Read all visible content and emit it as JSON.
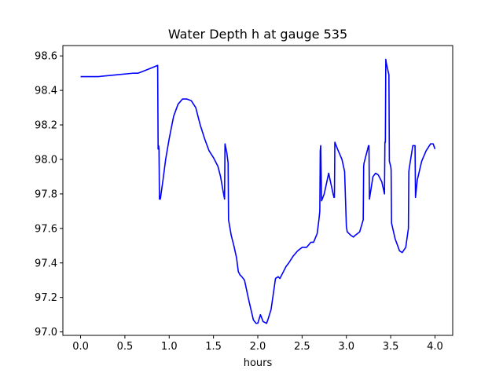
{
  "chart_data": {
    "type": "line",
    "title": "Water Depth h at gauge 535",
    "xlabel": "hours",
    "ylabel": "",
    "xlim": [
      -0.2,
      4.2
    ],
    "ylim": [
      96.98,
      98.66
    ],
    "xticks": [
      0.0,
      0.5,
      1.0,
      1.5,
      2.0,
      2.5,
      3.0,
      3.5,
      4.0
    ],
    "xtick_labels": [
      "0.0",
      "0.5",
      "1.0",
      "1.5",
      "2.0",
      "2.5",
      "3.0",
      "3.5",
      "4.0"
    ],
    "yticks": [
      97.0,
      97.2,
      97.4,
      97.6,
      97.8,
      98.0,
      98.2,
      98.4,
      98.6
    ],
    "ytick_labels": [
      "97.0",
      "97.2",
      "97.4",
      "97.6",
      "97.8",
      "98.0",
      "98.2",
      "98.4",
      "98.6"
    ],
    "grid": false,
    "series": [
      {
        "color": "#0000ff",
        "x": [
          0.0,
          0.2,
          0.4,
          0.6,
          0.65,
          0.7,
          0.8,
          0.87,
          0.875,
          0.88,
          0.885,
          0.89,
          0.9,
          0.93,
          0.96,
          1.0,
          1.05,
          1.1,
          1.15,
          1.2,
          1.25,
          1.3,
          1.35,
          1.4,
          1.45,
          1.5,
          1.55,
          1.58,
          1.6,
          1.625,
          1.63,
          1.65,
          1.665,
          1.67,
          1.7,
          1.73,
          1.76,
          1.78,
          1.8,
          1.82,
          1.85,
          1.9,
          1.95,
          1.98,
          2.0,
          2.03,
          2.06,
          2.1,
          2.12,
          2.15,
          2.2,
          2.23,
          2.25,
          2.28,
          2.32,
          2.35,
          2.4,
          2.45,
          2.5,
          2.55,
          2.6,
          2.63,
          2.67,
          2.69,
          2.7,
          2.705,
          2.71,
          2.72,
          2.75,
          2.8,
          2.85,
          2.86,
          2.865,
          2.87,
          2.9,
          2.95,
          2.98,
          3.0,
          3.01,
          3.05,
          3.08,
          3.1,
          3.15,
          3.19,
          3.195,
          3.2,
          3.25,
          3.255,
          3.26,
          3.3,
          3.33,
          3.36,
          3.4,
          3.43,
          3.435,
          3.44,
          3.445,
          3.45,
          3.48,
          3.485,
          3.5,
          3.505,
          3.51,
          3.55,
          3.6,
          3.63,
          3.67,
          3.7,
          3.705,
          3.71,
          3.75,
          3.775,
          3.78,
          3.8,
          3.85,
          3.9,
          3.95,
          3.98,
          4.0
        ],
        "y": [
          98.48,
          98.48,
          98.49,
          98.5,
          98.5,
          98.51,
          98.53,
          98.545,
          98.06,
          98.08,
          98.06,
          97.77,
          97.77,
          97.88,
          98.0,
          98.12,
          98.25,
          98.32,
          98.35,
          98.35,
          98.34,
          98.3,
          98.2,
          98.12,
          98.05,
          98.01,
          97.96,
          97.9,
          97.84,
          97.77,
          98.09,
          98.04,
          97.98,
          97.65,
          97.56,
          97.5,
          97.43,
          97.35,
          97.33,
          97.32,
          97.3,
          97.18,
          97.07,
          97.05,
          97.05,
          97.1,
          97.06,
          97.05,
          97.08,
          97.13,
          97.31,
          97.32,
          97.31,
          97.34,
          97.38,
          97.4,
          97.44,
          97.47,
          97.49,
          97.49,
          97.52,
          97.52,
          97.57,
          97.65,
          97.7,
          98.05,
          98.08,
          97.76,
          97.8,
          97.92,
          97.8,
          97.78,
          97.78,
          98.1,
          98.06,
          98.0,
          97.93,
          97.61,
          97.58,
          97.56,
          97.55,
          97.56,
          97.58,
          97.65,
          97.96,
          97.98,
          98.08,
          98.08,
          97.77,
          97.9,
          97.92,
          97.91,
          97.87,
          97.8,
          98.1,
          98.1,
          98.58,
          98.56,
          98.49,
          97.99,
          97.96,
          97.94,
          97.63,
          97.54,
          97.47,
          97.46,
          97.49,
          97.6,
          97.93,
          97.95,
          98.08,
          98.08,
          97.78,
          97.88,
          97.99,
          98.05,
          98.09,
          98.09,
          98.06
        ]
      }
    ]
  }
}
